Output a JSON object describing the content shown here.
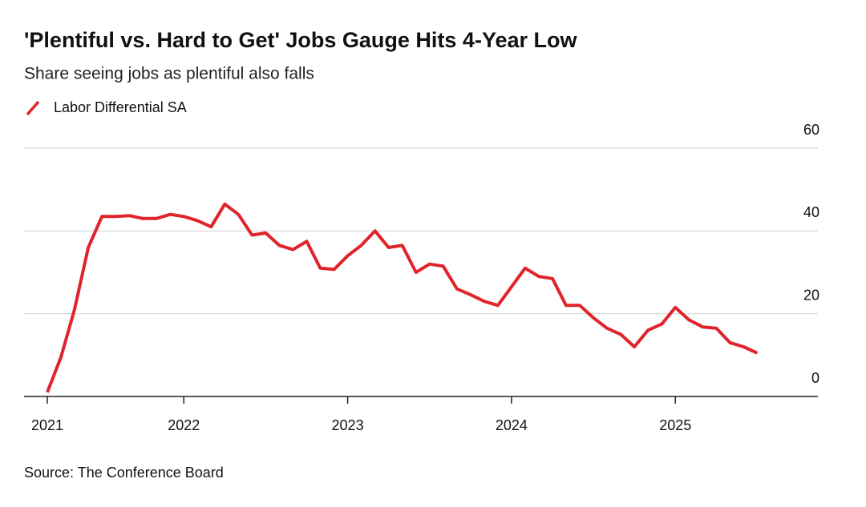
{
  "chart_data": {
    "type": "line",
    "title": "'Plentiful vs. Hard to Get' Jobs Gauge Hits 4-Year Low",
    "subtitle": "Share seeing jobs as plentiful also falls",
    "source": "Source: The Conference Board",
    "x": [
      2021.167,
      2021.25,
      2021.333,
      2021.417,
      2021.5,
      2021.583,
      2021.667,
      2021.75,
      2021.833,
      2021.917,
      2022.0,
      2022.083,
      2022.167,
      2022.25,
      2022.333,
      2022.417,
      2022.5,
      2022.583,
      2022.667,
      2022.75,
      2022.833,
      2022.917,
      2023.0,
      2023.083,
      2023.167,
      2023.25,
      2023.333,
      2023.417,
      2023.5,
      2023.583,
      2023.667,
      2023.75,
      2023.833,
      2023.917,
      2024.0,
      2024.083,
      2024.167,
      2024.25,
      2024.333,
      2024.417,
      2024.5,
      2024.583,
      2024.667,
      2024.75,
      2024.833,
      2024.917,
      2025.0,
      2025.083,
      2025.167,
      2025.25,
      2025.333,
      2025.417,
      2025.5
    ],
    "series": [
      {
        "name": "Labor Differential SA",
        "color": "#e0242b",
        "values": [
          1,
          9.5,
          21,
          36,
          43.5,
          43.5,
          43.7,
          43,
          43,
          44,
          43.5,
          42.5,
          41,
          46.5,
          44,
          39,
          39.5,
          36.5,
          35.5,
          37.5,
          31,
          30.7,
          34,
          36.5,
          40,
          36,
          36.5,
          30,
          32,
          31.5,
          26,
          24.6,
          23,
          22,
          26.5,
          31,
          29,
          28.5,
          22,
          22,
          19,
          16.5,
          15,
          12,
          16,
          17.5,
          21.5,
          18.5,
          16.8,
          16.5,
          13,
          12,
          10.5
        ]
      }
    ],
    "xlim": [
      2021.025,
      2025.87
    ],
    "xticks": [
      {
        "value": 2021.167,
        "label": "2021"
      },
      2022,
      2023,
      2024,
      2025
    ],
    "ylim": [
      0,
      60
    ],
    "yticks": [
      0,
      20,
      40,
      60
    ],
    "grid": true,
    "legend": "top-left"
  }
}
